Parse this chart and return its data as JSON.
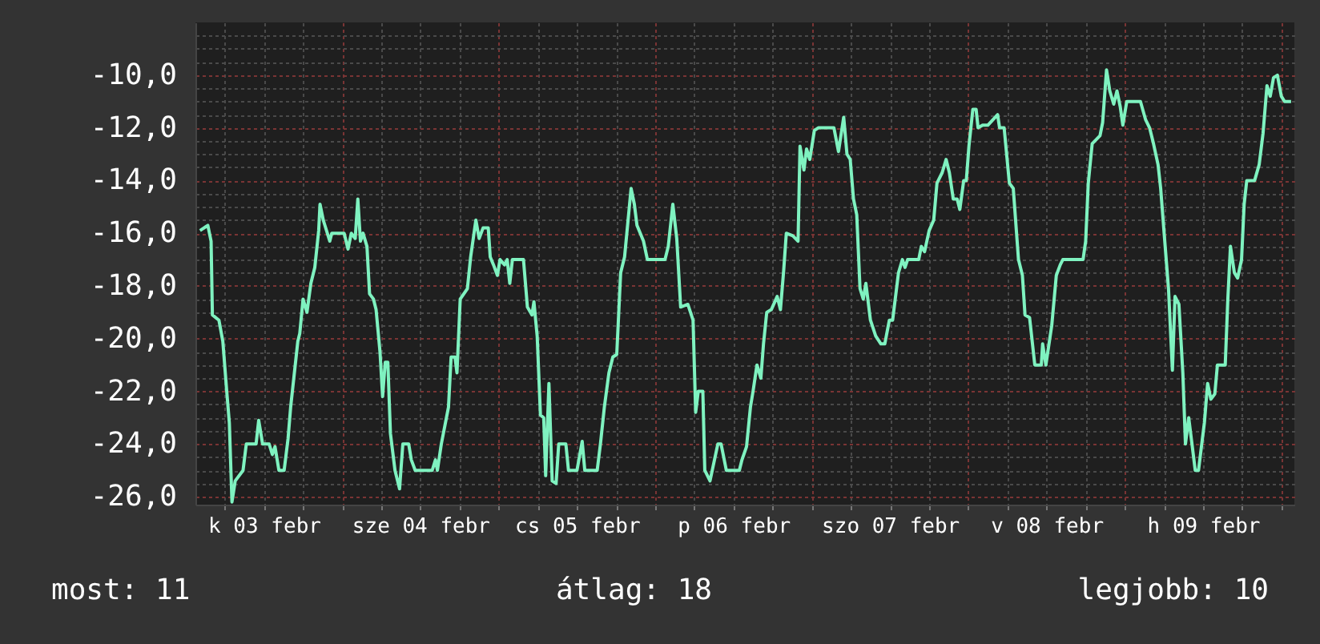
{
  "chart_data": {
    "type": "line",
    "annotations": [
      "most: 11",
      "átlag: 18",
      "legjobb: 10"
    ],
    "xlim": [
      "--02-03T01:30",
      "--02-10T02:00"
    ],
    "xticks": [
      {
        "value": "--02-03T06:00",
        "label": null
      },
      {
        "value": "--02-03T12:00",
        "label": "k 03 febr"
      },
      {
        "value": "--02-03T18:00",
        "label": null
      },
      {
        "value": "--02-04T00:00",
        "label": null
      },
      {
        "value": "--02-04T06:00",
        "label": null
      },
      {
        "value": "--02-04T12:00",
        "label": "sze 04 febr"
      },
      {
        "value": "--02-04T18:00",
        "label": null
      },
      {
        "value": "--02-05T00:00",
        "label": null
      },
      {
        "value": "--02-05T06:00",
        "label": null
      },
      {
        "value": "--02-05T12:00",
        "label": "cs 05 febr"
      },
      {
        "value": "--02-05T18:00",
        "label": null
      },
      {
        "value": "--02-06T00:00",
        "label": null
      },
      {
        "value": "--02-06T06:00",
        "label": null
      },
      {
        "value": "--02-06T12:00",
        "label": "p 06 febr"
      },
      {
        "value": "--02-06T18:00",
        "label": null
      },
      {
        "value": "--02-07T00:00",
        "label": null
      },
      {
        "value": "--02-07T06:00",
        "label": null
      },
      {
        "value": "--02-07T12:00",
        "label": "szo 07 febr"
      },
      {
        "value": "--02-07T18:00",
        "label": null
      },
      {
        "value": "--02-08T00:00",
        "label": null
      },
      {
        "value": "--02-08T06:00",
        "label": null
      },
      {
        "value": "--02-08T12:00",
        "label": "v 08 febr"
      },
      {
        "value": "--02-08T18:00",
        "label": null
      },
      {
        "value": "--02-09T00:00",
        "label": null
      },
      {
        "value": "--02-09T06:00",
        "label": null
      },
      {
        "value": "--02-09T12:00",
        "label": "h 09 febr"
      },
      {
        "value": "--02-09T18:00",
        "label": null
      },
      {
        "value": "--02-10T00:00",
        "label": null
      }
    ],
    "ylim": [
      -26.3,
      -8
    ],
    "yticks": [
      {
        "value": -26,
        "label": "-26,0"
      },
      {
        "value": -25.5,
        "label": null
      },
      {
        "value": -25,
        "label": null
      },
      {
        "value": -24.5,
        "label": null
      },
      {
        "value": -24,
        "label": "-24,0"
      },
      {
        "value": -23.5,
        "label": null
      },
      {
        "value": -23,
        "label": null
      },
      {
        "value": -22.5,
        "label": null
      },
      {
        "value": -22,
        "label": "-22,0"
      },
      {
        "value": -21.5,
        "label": null
      },
      {
        "value": -21,
        "label": null
      },
      {
        "value": -20.5,
        "label": null
      },
      {
        "value": -20,
        "label": "-20,0"
      },
      {
        "value": -19.5,
        "label": null
      },
      {
        "value": -19,
        "label": null
      },
      {
        "value": -18.5,
        "label": null
      },
      {
        "value": -18,
        "label": "-18,0"
      },
      {
        "value": -17.5,
        "label": null
      },
      {
        "value": -17,
        "label": null
      },
      {
        "value": -16.5,
        "label": null
      },
      {
        "value": -16,
        "label": "-16,0"
      },
      {
        "value": -15.5,
        "label": null
      },
      {
        "value": -15,
        "label": null
      },
      {
        "value": -14.5,
        "label": null
      },
      {
        "value": -14,
        "label": "-14,0"
      },
      {
        "value": -13.5,
        "label": null
      },
      {
        "value": -13,
        "label": null
      },
      {
        "value": -12.5,
        "label": null
      },
      {
        "value": -12,
        "label": "-12,0"
      },
      {
        "value": -11.5,
        "label": null
      },
      {
        "value": -11,
        "label": null
      },
      {
        "value": -10.5,
        "label": null
      },
      {
        "value": -10,
        "label": "-10,0"
      },
      {
        "value": -9.5,
        "label": null
      },
      {
        "value": -9,
        "label": null
      },
      {
        "value": -8.5,
        "label": null
      }
    ],
    "grid": true,
    "series": [
      {
        "color": "#7ff2c0",
        "x": [
          "--02-03T02:12",
          "--02-03T03:24",
          "--02-03T03:54",
          "--02-03T04:06",
          "--02-03T05:06",
          "--02-03T05:42",
          "--02-03T06:18",
          "--02-03T06:42",
          "--02-03T07:06",
          "--02-03T07:36",
          "--02-03T08:48",
          "--02-03T09:18",
          "--02-03T10:48",
          "--02-03T11:12",
          "--02-03T11:48",
          "--02-03T12:48",
          "--02-03T13:18",
          "--02-03T13:42",
          "--02-03T14:18",
          "--02-03T15:06",
          "--02-03T15:42",
          "--02-03T16:06",
          "--02-03T17:12",
          "--02-03T17:30",
          "--02-03T18:00",
          "--02-03T18:36",
          "--02-03T19:12",
          "--02-03T19:48",
          "--02-03T20:24",
          "--02-03T20:36",
          "--02-03T21:06",
          "--02-03T22:06",
          "--02-03T22:24",
          "--02-04T00:18",
          "--02-04T00:54",
          "--02-04T01:24",
          "--02-04T02:00",
          "--02-04T02:24",
          "--02-04T02:48",
          "--02-04T03:12",
          "--02-04T03:48",
          "--02-04T04:12",
          "--02-04T04:48",
          "--02-04T05:12",
          "--02-04T05:48",
          "--02-04T06:12",
          "--02-04T06:36",
          "--02-04T07:00",
          "--02-04T07:24",
          "--02-04T08:06",
          "--02-04T08:48",
          "--02-04T09:18",
          "--02-04T10:12",
          "--02-04T10:36",
          "--02-04T11:12",
          "--02-04T13:48",
          "--02-04T14:18",
          "--02-04T14:36",
          "--02-04T15:12",
          "--02-04T16:18",
          "--02-04T16:42",
          "--02-04T17:18",
          "--02-04T17:36",
          "--02-04T18:06",
          "--02-04T19:12",
          "--02-04T19:42",
          "--02-04T20:30",
          "--02-04T21:00",
          "--02-04T21:36",
          "--02-04T22:24",
          "--02-04T22:42",
          "--02-04T23:12",
          "--02-04T23:48",
          "--02-05T00:12",
          "--02-05T00:54",
          "--02-05T01:18",
          "--02-05T01:42",
          "--02-05T02:06",
          "--02-05T03:48",
          "--02-05T04:24",
          "--02-05T05:06",
          "--02-05T05:24",
          "--02-05T05:54",
          "--02-05T06:24",
          "--02-05T06:54",
          "--02-05T07:12",
          "--02-05T07:42",
          "--02-05T08:12",
          "--02-05T08:48",
          "--02-05T09:12",
          "--02-05T10:18",
          "--02-05T10:42",
          "--02-05T12:00",
          "--02-05T12:48",
          "--02-05T13:12",
          "--02-05T15:06",
          "--02-05T15:36",
          "--02-05T16:12",
          "--02-05T16:54",
          "--02-05T17:30",
          "--02-05T18:06",
          "--02-05T18:42",
          "--02-05T19:18",
          "--02-05T20:18",
          "--02-05T20:48",
          "--02-05T21:12",
          "--02-05T22:12",
          "--02-05T22:48",
          "--02-06T01:30",
          "--02-06T02:00",
          "--02-06T02:42",
          "--02-06T03:18",
          "--02-06T03:54",
          "--02-06T05:00",
          "--02-06T05:48",
          "--02-06T06:12",
          "--02-06T06:36",
          "--02-06T07:18",
          "--02-06T07:36",
          "--02-06T08:24",
          "--02-06T09:36",
          "--02-06T10:06",
          "--02-06T10:54",
          "--02-06T12:54",
          "--02-06T13:18",
          "--02-06T14:00",
          "--02-06T14:36",
          "--02-06T15:00",
          "--02-06T15:36",
          "--02-06T16:12",
          "--02-06T16:36",
          "--02-06T17:06",
          "--02-06T17:48",
          "--02-06T18:42",
          "--02-06T19:12",
          "--02-06T19:42",
          "--02-06T20:06",
          "--02-06T21:06",
          "--02-06T21:54",
          "--02-06T22:12",
          "--02-06T22:48",
          "--02-06T23:12",
          "--02-06T23:42",
          "--02-07T00:24",
          "--02-07T01:00",
          "--02-07T03:24",
          "--02-07T04:06",
          "--02-07T04:54",
          "--02-07T05:24",
          "--02-07T05:54",
          "--02-07T06:24",
          "--02-07T06:54",
          "--02-07T07:24",
          "--02-07T07:54",
          "--02-07T08:18",
          "--02-07T09:00",
          "--02-07T09:48",
          "--02-07T10:36",
          "--02-07T11:12",
          "--02-07T11:54",
          "--02-07T12:24",
          "--02-07T13:18",
          "--02-07T13:54",
          "--02-07T14:18",
          "--02-07T14:42",
          "--02-07T16:24",
          "--02-07T16:48",
          "--02-07T17:18",
          "--02-07T18:00",
          "--02-07T18:42",
          "--02-07T19:12",
          "--02-07T20:00",
          "--02-07T20:36",
          "--02-07T21:06",
          "--02-07T21:42",
          "--02-07T22:18",
          "--02-07T22:42",
          "--02-07T23:18",
          "--02-07T23:42",
          "--02-08T00:06",
          "--02-08T00:42",
          "--02-08T01:12",
          "--02-08T01:30",
          "--02-08T02:12",
          "--02-08T03:00",
          "--02-08T04:30",
          "--02-08T04:48",
          "--02-08T05:30",
          "--02-08T06:18",
          "--02-08T06:54",
          "--02-08T07:42",
          "--02-08T08:18",
          "--02-08T08:42",
          "--02-08T09:24",
          "--02-08T10:12",
          "--02-08T11:12",
          "--02-08T11:24",
          "--02-08T11:54",
          "--02-08T12:48",
          "--02-08T13:30",
          "--02-08T14:06",
          "--02-08T14:30",
          "--02-08T17:36",
          "--02-08T18:00",
          "--02-08T18:24",
          "--02-08T19:00",
          "--02-08T20:12",
          "--02-08T20:36",
          "--02-08T21:12",
          "--02-08T21:42",
          "--02-08T22:18",
          "--02-08T22:48",
          "--02-08T23:18",
          "--02-08T23:42",
          "--02-09T00:18",
          "--02-09T01:06",
          "--02-09T02:24",
          "--02-09T03:12",
          "--02-09T03:48",
          "--02-09T04:24",
          "--02-09T05:06",
          "--02-09T05:30",
          "--02-09T06:00",
          "--02-09T06:42",
          "--02-09T07:18",
          "--02-09T07:42",
          "--02-09T08:18",
          "--02-09T08:54",
          "--02-09T09:18",
          "--02-09T09:48",
          "--02-09T10:18",
          "--02-09T10:48",
          "--02-09T11:18",
          "--02-09T12:12",
          "--02-09T12:42",
          "--02-09T13:12",
          "--02-09T13:48",
          "--02-09T14:12",
          "--02-09T15:24",
          "--02-09T15:48",
          "--02-09T16:12",
          "--02-09T16:48",
          "--02-09T17:18",
          "--02-09T17:54",
          "--02-09T18:18",
          "--02-09T18:42",
          "--02-09T19:54",
          "--02-09T20:36",
          "--02-09T21:12",
          "--02-09T21:48",
          "--02-09T22:18",
          "--02-09T22:48",
          "--02-09T23:24",
          "--02-10T00:00",
          "--02-10T00:30",
          "--02-10T01:30"
        ],
        "values": [
          -15.9,
          -15.7,
          -16.3,
          -19.1,
          -19.3,
          -20.1,
          -22.0,
          -23.2,
          -26.2,
          -25.4,
          -25.0,
          -24.0,
          -24.0,
          -23.1,
          -24.0,
          -24.0,
          -24.4,
          -24.1,
          -25.0,
          -25.0,
          -23.8,
          -22.6,
          -20.1,
          -19.8,
          -18.5,
          -19.0,
          -17.9,
          -17.3,
          -15.9,
          -14.9,
          -15.5,
          -16.3,
          -16.0,
          -16.0,
          -16.6,
          -16.0,
          -16.2,
          -14.7,
          -16.3,
          -16.0,
          -16.5,
          -18.3,
          -18.5,
          -18.9,
          -20.5,
          -22.2,
          -20.9,
          -20.9,
          -23.6,
          -25.0,
          -25.7,
          -24.0,
          -24.0,
          -24.6,
          -25.0,
          -25.0,
          -24.6,
          -25.0,
          -24.0,
          -22.6,
          -20.7,
          -20.7,
          -21.3,
          -18.5,
          -18.1,
          -16.9,
          -15.5,
          -16.2,
          -15.8,
          -15.8,
          -16.9,
          -17.2,
          -17.6,
          -17.0,
          -17.2,
          -17.0,
          -17.9,
          -17.0,
          -17.0,
          -18.8,
          -19.1,
          -18.6,
          -19.9,
          -22.9,
          -23.0,
          -25.2,
          -21.7,
          -25.4,
          -25.5,
          -24.0,
          -24.0,
          -25.0,
          -25.0,
          -23.9,
          -25.0,
          -25.0,
          -24.0,
          -22.6,
          -21.3,
          -20.7,
          -20.6,
          -17.5,
          -16.9,
          -14.3,
          -14.9,
          -15.7,
          -16.3,
          -17.0,
          -17.0,
          -16.5,
          -14.9,
          -16.2,
          -18.8,
          -18.7,
          -19.3,
          -22.8,
          -22.0,
          -22.0,
          -25.0,
          -25.4,
          -24.0,
          -24.0,
          -25.0,
          -25.0,
          -24.6,
          -24.1,
          -22.6,
          -22.0,
          -21.0,
          -21.5,
          -20.2,
          -19.0,
          -18.9,
          -18.4,
          -18.9,
          -17.4,
          -16.0,
          -16.1,
          -16.3,
          -12.7,
          -13.6,
          -12.8,
          -13.2,
          -12.1,
          -12.0,
          -12.0,
          -12.9,
          -11.6,
          -13.0,
          -13.2,
          -14.7,
          -15.3,
          -18.1,
          -18.5,
          -17.9,
          -19.3,
          -19.9,
          -20.2,
          -20.2,
          -19.3,
          -19.3,
          -17.5,
          -17.0,
          -17.3,
          -17.0,
          -17.0,
          -16.5,
          -16.7,
          -15.9,
          -15.5,
          -14.1,
          -13.7,
          -13.2,
          -13.7,
          -14.7,
          -14.7,
          -15.1,
          -14.0,
          -14.0,
          -12.7,
          -11.3,
          -11.3,
          -12.0,
          -11.9,
          -11.9,
          -11.5,
          -12.0,
          -12.0,
          -14.1,
          -14.3,
          -17.0,
          -17.6,
          -19.1,
          -19.2,
          -21.0,
          -21.0,
          -20.2,
          -21.0,
          -19.5,
          -17.6,
          -17.2,
          -17.0,
          -17.0,
          -16.3,
          -14.1,
          -12.6,
          -12.3,
          -11.8,
          -9.8,
          -10.6,
          -11.1,
          -10.6,
          -11.2,
          -11.9,
          -11.0,
          -11.0,
          -11.0,
          -11.7,
          -12.0,
          -12.6,
          -13.4,
          -14.3,
          -15.9,
          -18.1,
          -21.2,
          -18.4,
          -18.7,
          -21.3,
          -24.0,
          -23.0,
          -24.0,
          -25.0,
          -25.0,
          -23.2,
          -21.7,
          -22.3,
          -22.1,
          -21.0,
          -21.0,
          -18.5,
          -16.5,
          -17.5,
          -17.7,
          -17.0,
          -14.9,
          -14.0,
          -14.0,
          -13.4,
          -12.2,
          -10.4,
          -10.8,
          -10.1,
          -10.0,
          -10.8,
          -11.0,
          -11.0
        ]
      }
    ]
  }
}
